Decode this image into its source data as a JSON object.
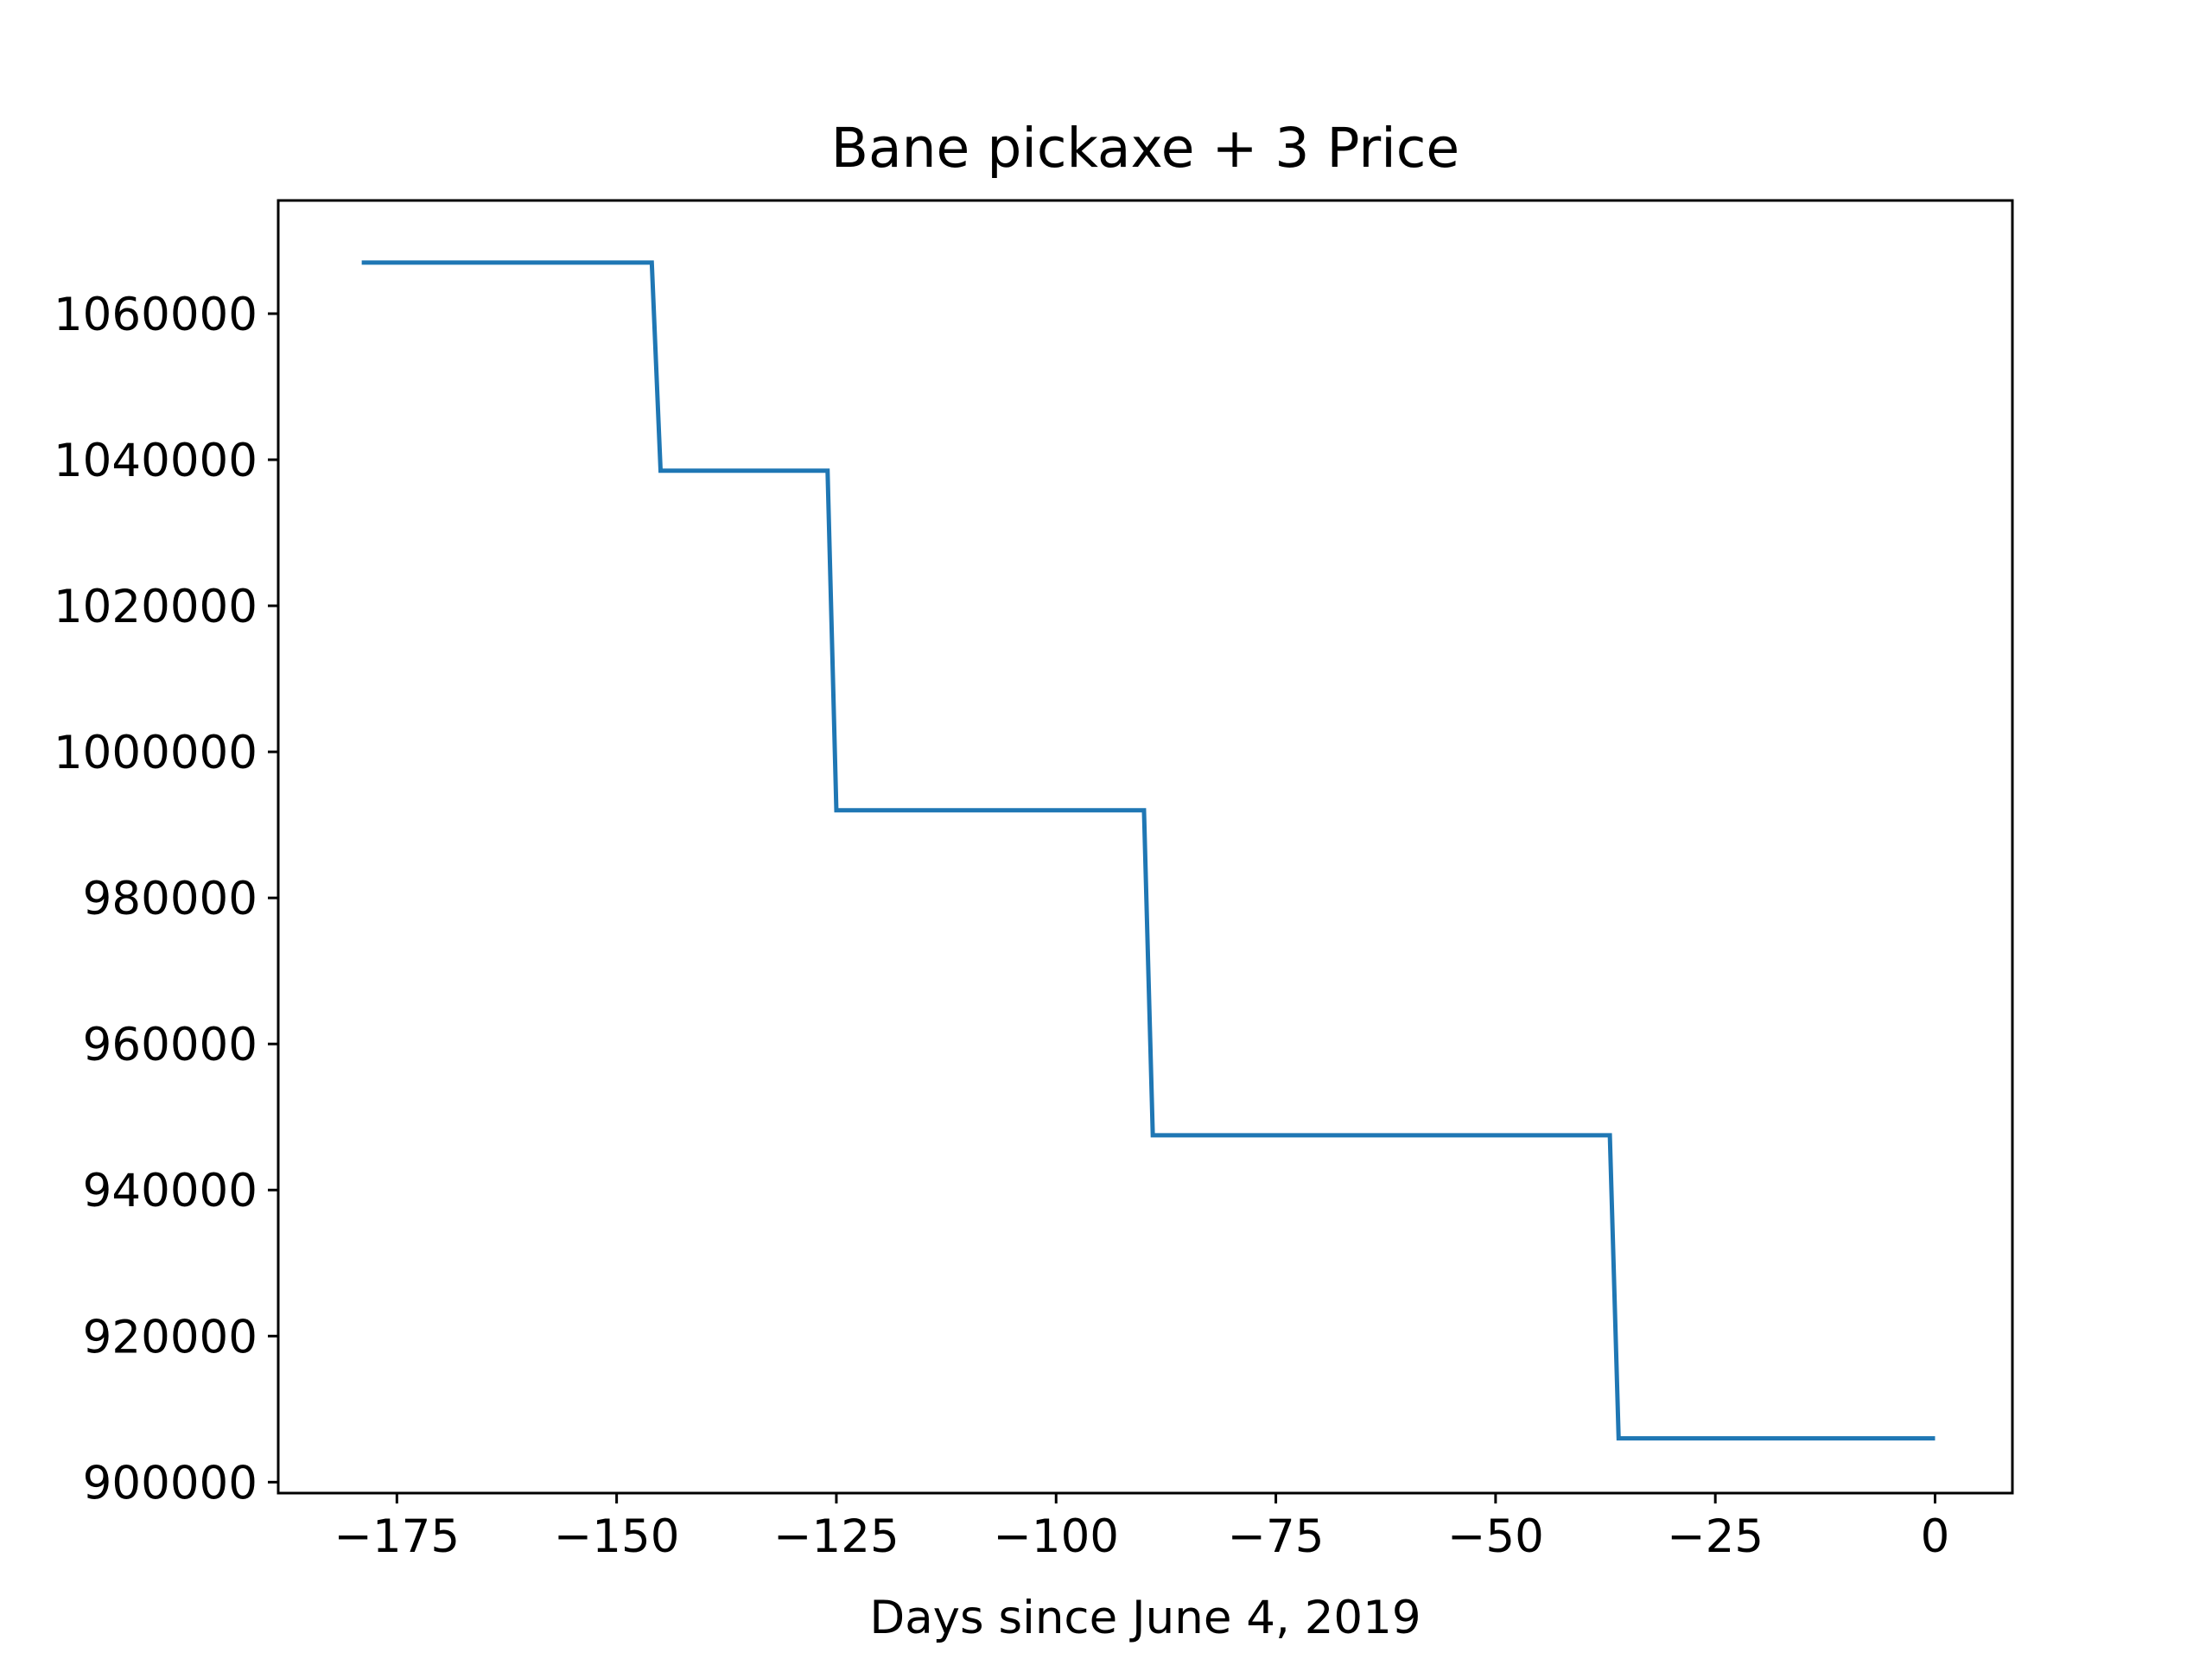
{
  "chart_data": {
    "type": "line",
    "title": "Bane pickaxe + 3 Price",
    "xlabel": "Days since June 4, 2019",
    "ylabel": "",
    "xlim": [
      -188.5,
      8.8
    ],
    "ylim": [
      898500,
      1075500
    ],
    "xticks": [
      -175,
      -150,
      -125,
      -100,
      -75,
      -50,
      -25,
      0
    ],
    "xtick_labels": [
      "−175",
      "−150",
      "−125",
      "−100",
      "−75",
      "−50",
      "−25",
      "0"
    ],
    "yticks": [
      900000,
      920000,
      940000,
      960000,
      980000,
      1000000,
      1020000,
      1040000,
      1060000
    ],
    "ytick_labels": [
      "900000",
      "920000",
      "940000",
      "960000",
      "980000",
      "1000000",
      "1020000",
      "1040000",
      "1060000"
    ],
    "grid": false,
    "legend": "none",
    "line_color": "#1f77b4",
    "series": [
      {
        "x": [
          -179,
          -146,
          -145,
          -126,
          -125,
          -90,
          -89,
          -37,
          -36,
          0
        ],
        "y": [
          1067000,
          1067000,
          1038500,
          1038500,
          992000,
          992000,
          947500,
          947500,
          906000,
          906000
        ]
      }
    ]
  }
}
